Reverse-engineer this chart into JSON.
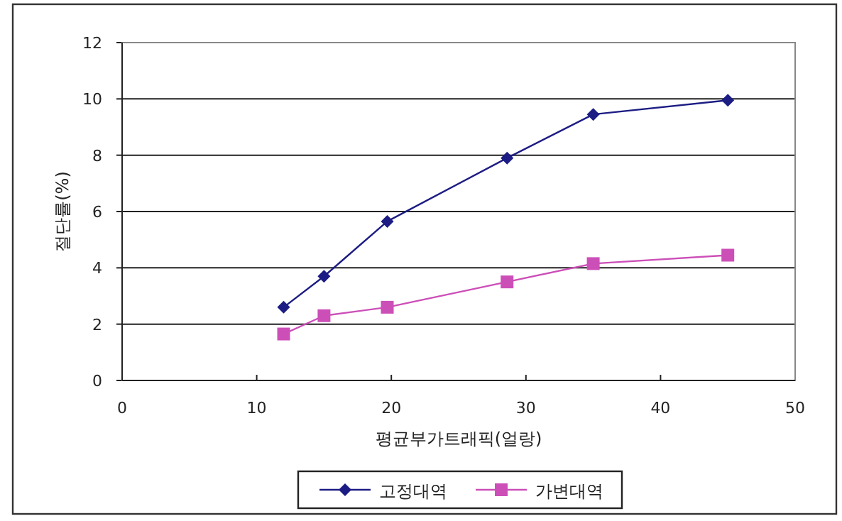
{
  "chart_data": {
    "type": "line",
    "xlabel": "평균부가트래픽(얼랑)",
    "ylabel": "절단률(%)",
    "x": [
      12,
      15,
      19.7,
      28.6,
      35,
      45
    ],
    "series": [
      {
        "name": "고정대역",
        "color": "#1c1c84",
        "marker": "diamond",
        "values": [
          2.6,
          3.7,
          5.65,
          7.9,
          9.45,
          9.95
        ]
      },
      {
        "name": "가변대역",
        "color": "#cc4fb8",
        "marker": "square",
        "values": [
          1.65,
          2.3,
          2.6,
          3.5,
          4.15,
          4.45
        ]
      }
    ],
    "xlim": [
      0,
      50
    ],
    "ylim": [
      0,
      12
    ],
    "xticks": [
      0,
      10,
      20,
      30,
      40,
      50
    ],
    "yticks": [
      0,
      2,
      4,
      6,
      8,
      10,
      12
    ],
    "grid": "y",
    "legend": "bottom"
  }
}
